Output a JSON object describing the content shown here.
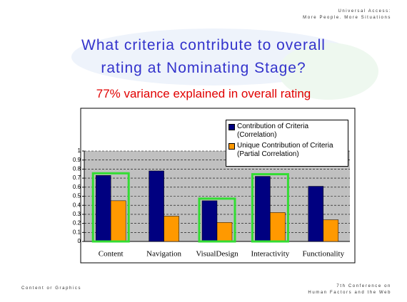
{
  "header": {
    "line1": "Universal Access:",
    "line2": "More People. More Situations"
  },
  "title": {
    "line1": "What criteria contribute to overall",
    "line2": "rating at Nominating Stage?"
  },
  "subtitle": "77% variance explained in overall rating",
  "chart_data": {
    "type": "bar",
    "categories": [
      "Content",
      "Navigation",
      "VisualDesign",
      "Interactivity",
      "Functionality"
    ],
    "series": [
      {
        "name": "Contribution of Criteria (Correlation)",
        "color": "#000080",
        "values": [
          0.73,
          0.78,
          0.45,
          0.72,
          0.61
        ]
      },
      {
        "name": "Unique Contribution of Criteria (Partial Correlation)",
        "color": "#ff9900",
        "values": [
          0.45,
          0.28,
          0.21,
          0.32,
          0.24
        ]
      }
    ],
    "ylim": [
      0,
      1
    ],
    "yticks": [
      0,
      0.1,
      0.2,
      0.3,
      0.4,
      0.5,
      0.6,
      0.7,
      0.8,
      0.9,
      1
    ],
    "grid": true,
    "legend": "upper right",
    "highlight": {
      "color": "#33dd33",
      "categories": [
        0,
        2,
        3
      ]
    }
  },
  "footer": {
    "left": "Content or Graphics",
    "right_line1": "7th Conference on",
    "right_line2": "Human Factors and the Web"
  }
}
